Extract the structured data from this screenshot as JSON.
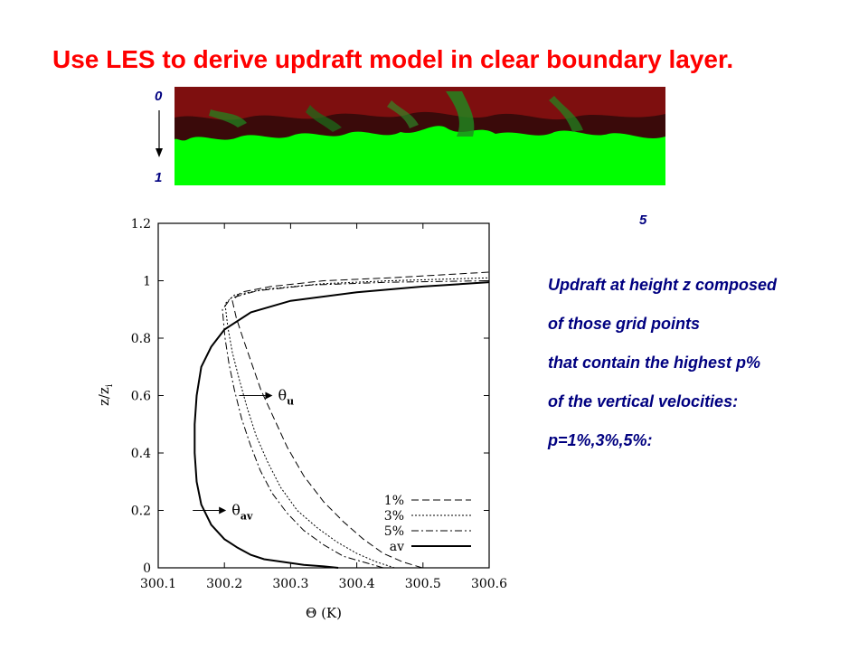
{
  "slide": {
    "title": "Use LES to derive updraft model in clear boundary layer.",
    "image_labels": {
      "top": "0",
      "bottom": "1",
      "right": "5"
    },
    "notes": [
      "Updraft at height z composed",
      "of those grid points",
      "that contain the highest p%",
      "of the vertical velocities:",
      "p=1%,3%,5%:"
    ]
  },
  "colors": {
    "title": "#ff0000",
    "notes": "#000080",
    "image_dark": "#3a0a0a",
    "image_red": "#8b1010",
    "image_green": "#00ff00"
  },
  "chart_data": {
    "type": "line",
    "xlabel": "Θ (K)",
    "ylabel": "z/z",
    "ylabel_sub": "i",
    "xlim": [
      300.1,
      300.6
    ],
    "ylim": [
      0,
      1.2
    ],
    "x_ticks": [
      "300.1",
      "300.2",
      "300.3",
      "300.4",
      "300.5",
      "300.6"
    ],
    "y_ticks": [
      "0",
      "0.2",
      "0.4",
      "0.6",
      "0.8",
      "1",
      "1.2"
    ],
    "legend_position": "bottom-right",
    "series": [
      {
        "name": "1%",
        "style": "dashed",
        "x": [
          300.499,
          300.47,
          300.44,
          300.41,
          300.38,
          300.35,
          300.32,
          300.295,
          300.275,
          300.255,
          300.24,
          300.228,
          300.218,
          300.212,
          300.225,
          300.27,
          300.35,
          300.45,
          300.6
        ],
        "y": [
          0,
          0.02,
          0.05,
          0.1,
          0.16,
          0.23,
          0.32,
          0.42,
          0.52,
          0.62,
          0.72,
          0.8,
          0.87,
          0.93,
          0.96,
          0.98,
          1.0,
          1.01,
          1.03
        ]
      },
      {
        "name": "3%",
        "style": "dotted",
        "x": [
          300.457,
          300.43,
          300.4,
          300.37,
          300.34,
          300.31,
          300.285,
          300.265,
          300.248,
          300.234,
          300.222,
          300.212,
          300.205,
          300.201,
          300.215,
          300.26,
          300.35,
          300.45,
          300.6
        ],
        "y": [
          0,
          0.02,
          0.05,
          0.09,
          0.14,
          0.2,
          0.28,
          0.37,
          0.46,
          0.56,
          0.66,
          0.75,
          0.84,
          0.92,
          0.95,
          0.97,
          0.99,
          1.0,
          1.01
        ]
      },
      {
        "name": "5%",
        "style": "dashdot",
        "x": [
          300.44,
          300.41,
          300.38,
          300.35,
          300.32,
          300.295,
          300.272,
          300.254,
          300.239,
          300.226,
          300.215,
          300.207,
          300.201,
          300.197,
          300.21,
          300.25,
          300.33,
          300.45,
          300.6
        ],
        "y": [
          0,
          0.02,
          0.04,
          0.08,
          0.13,
          0.19,
          0.26,
          0.34,
          0.43,
          0.52,
          0.62,
          0.71,
          0.8,
          0.9,
          0.94,
          0.965,
          0.985,
          0.995,
          1.0
        ]
      },
      {
        "name": "av",
        "style": "solid",
        "x": [
          300.372,
          300.35,
          300.32,
          300.29,
          300.26,
          300.24,
          300.22,
          300.2,
          300.18,
          300.165,
          300.158,
          300.155,
          300.155,
          300.158,
          300.165,
          300.18,
          300.2,
          300.24,
          300.3,
          300.4,
          300.5,
          300.6
        ],
        "y": [
          0,
          0.005,
          0.01,
          0.02,
          0.03,
          0.045,
          0.07,
          0.1,
          0.15,
          0.22,
          0.3,
          0.4,
          0.5,
          0.6,
          0.7,
          0.77,
          0.83,
          0.89,
          0.93,
          0.96,
          0.98,
          0.995
        ]
      }
    ],
    "annotations": [
      {
        "text": "θ",
        "sub": "u",
        "x": 300.27,
        "y": 0.6
      },
      {
        "text": "θ",
        "sub": "av",
        "x": 300.2,
        "y": 0.2
      }
    ]
  }
}
